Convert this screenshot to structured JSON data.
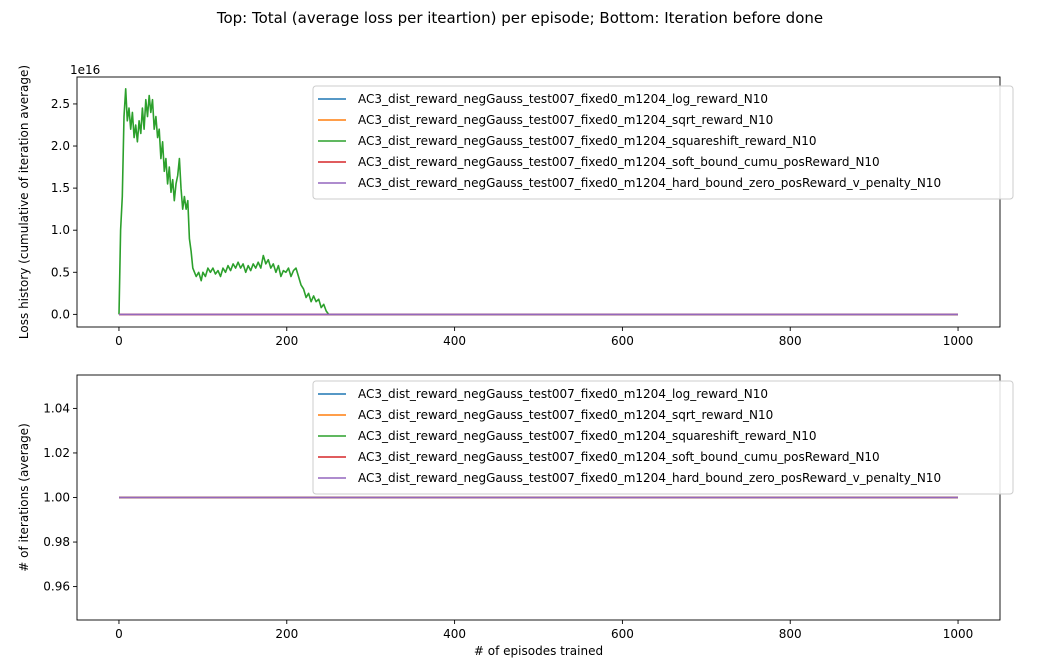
{
  "figure": {
    "suptitle": "Top: Total (average loss per iteartion) per episode; Bottom: Iteration before done"
  },
  "chart_data": [
    {
      "type": "line",
      "title": "",
      "xlabel": "",
      "ylabel": "Loss history (cumulative of iteration average)",
      "offset_text": "1e16",
      "xlim": [
        -50,
        1050
      ],
      "ylim": [
        -0.15,
        2.82
      ],
      "xticks": [
        0,
        200,
        400,
        600,
        800,
        1000
      ],
      "xtick_labels": [
        "0",
        "200",
        "400",
        "600",
        "800",
        "1000"
      ],
      "yticks": [
        0.0,
        0.5,
        1.0,
        1.5,
        2.0,
        2.5
      ],
      "ytick_labels": [
        "0.0",
        "0.5",
        "1.0",
        "1.5",
        "2.0",
        "2.5"
      ],
      "grid": false,
      "legend_position": "upper-right",
      "series": [
        {
          "name": "AC3_dist_reward_negGauss_test007_fixed0_m1204_log_reward_N10",
          "color": "#1f77b4",
          "points": [
            [
              0,
              0
            ],
            [
              1000,
              0
            ]
          ]
        },
        {
          "name": "AC3_dist_reward_negGauss_test007_fixed0_m1204_sqrt_reward_N10",
          "color": "#ff7f0e",
          "points": [
            [
              0,
              0
            ],
            [
              1000,
              0
            ]
          ]
        },
        {
          "name": "AC3_dist_reward_negGauss_test007_fixed0_m1204_squareshift_reward_N10",
          "color": "#2ca02c",
          "points": [
            [
              0,
              0
            ],
            [
              2,
              1.0
            ],
            [
              4,
              1.4
            ],
            [
              6,
              2.35
            ],
            [
              8,
              2.68
            ],
            [
              10,
              2.3
            ],
            [
              12,
              2.45
            ],
            [
              14,
              2.2
            ],
            [
              16,
              2.4
            ],
            [
              18,
              2.1
            ],
            [
              20,
              2.25
            ],
            [
              22,
              2.05
            ],
            [
              24,
              2.3
            ],
            [
              26,
              2.15
            ],
            [
              28,
              2.45
            ],
            [
              30,
              2.2
            ],
            [
              32,
              2.55
            ],
            [
              34,
              2.35
            ],
            [
              36,
              2.6
            ],
            [
              38,
              2.4
            ],
            [
              40,
              2.55
            ],
            [
              42,
              2.2
            ],
            [
              44,
              2.35
            ],
            [
              46,
              2.1
            ],
            [
              48,
              2.2
            ],
            [
              50,
              1.85
            ],
            [
              52,
              2.05
            ],
            [
              54,
              1.7
            ],
            [
              56,
              1.85
            ],
            [
              58,
              1.55
            ],
            [
              60,
              1.75
            ],
            [
              62,
              1.45
            ],
            [
              64,
              1.6
            ],
            [
              66,
              1.35
            ],
            [
              68,
              1.55
            ],
            [
              70,
              1.65
            ],
            [
              72,
              1.85
            ],
            [
              74,
              1.5
            ],
            [
              76,
              1.25
            ],
            [
              78,
              1.4
            ],
            [
              80,
              1.25
            ],
            [
              82,
              1.35
            ],
            [
              84,
              0.9
            ],
            [
              86,
              0.75
            ],
            [
              88,
              0.55
            ],
            [
              90,
              0.5
            ],
            [
              92,
              0.45
            ],
            [
              95,
              0.5
            ],
            [
              98,
              0.4
            ],
            [
              100,
              0.5
            ],
            [
              103,
              0.45
            ],
            [
              106,
              0.55
            ],
            [
              109,
              0.5
            ],
            [
              112,
              0.55
            ],
            [
              115,
              0.48
            ],
            [
              118,
              0.52
            ],
            [
              121,
              0.45
            ],
            [
              124,
              0.55
            ],
            [
              127,
              0.5
            ],
            [
              130,
              0.58
            ],
            [
              133,
              0.52
            ],
            [
              136,
              0.6
            ],
            [
              139,
              0.55
            ],
            [
              142,
              0.62
            ],
            [
              145,
              0.55
            ],
            [
              148,
              0.6
            ],
            [
              151,
              0.5
            ],
            [
              154,
              0.58
            ],
            [
              157,
              0.52
            ],
            [
              160,
              0.6
            ],
            [
              163,
              0.55
            ],
            [
              166,
              0.62
            ],
            [
              169,
              0.55
            ],
            [
              172,
              0.7
            ],
            [
              175,
              0.6
            ],
            [
              178,
              0.65
            ],
            [
              181,
              0.55
            ],
            [
              184,
              0.6
            ],
            [
              187,
              0.5
            ],
            [
              190,
              0.58
            ],
            [
              193,
              0.45
            ],
            [
              196,
              0.52
            ],
            [
              199,
              0.5
            ],
            [
              202,
              0.55
            ],
            [
              205,
              0.45
            ],
            [
              208,
              0.52
            ],
            [
              211,
              0.55
            ],
            [
              214,
              0.45
            ],
            [
              217,
              0.35
            ],
            [
              220,
              0.3
            ],
            [
              223,
              0.2
            ],
            [
              226,
              0.25
            ],
            [
              229,
              0.15
            ],
            [
              232,
              0.22
            ],
            [
              235,
              0.15
            ],
            [
              238,
              0.18
            ],
            [
              241,
              0.08
            ],
            [
              244,
              0.12
            ],
            [
              247,
              0.04
            ],
            [
              250,
              0.0
            ],
            [
              1000,
              0
            ]
          ]
        },
        {
          "name": "AC3_dist_reward_negGauss_test007_fixed0_m1204_soft_bound_cumu_posReward_N10",
          "color": "#d62728",
          "points": [
            [
              0,
              0
            ],
            [
              1000,
              0
            ]
          ]
        },
        {
          "name": "AC3_dist_reward_negGauss_test007_fixed0_m1204_hard_bound_zero_posReward_v_penalty_N10",
          "color": "#9467bd",
          "points": [
            [
              0,
              0
            ],
            [
              1000,
              0
            ]
          ]
        }
      ]
    },
    {
      "type": "line",
      "title": "",
      "xlabel": "# of episodes trained",
      "ylabel": "# of iterations (average)",
      "xlim": [
        -50,
        1050
      ],
      "ylim": [
        0.945,
        1.055
      ],
      "xticks": [
        0,
        200,
        400,
        600,
        800,
        1000
      ],
      "xtick_labels": [
        "0",
        "200",
        "400",
        "600",
        "800",
        "1000"
      ],
      "yticks": [
        0.96,
        0.98,
        1.0,
        1.02,
        1.04
      ],
      "ytick_labels": [
        "0.96",
        "0.98",
        "1.00",
        "1.02",
        "1.04"
      ],
      "grid": false,
      "legend_position": "upper-right",
      "series": [
        {
          "name": "AC3_dist_reward_negGauss_test007_fixed0_m1204_log_reward_N10",
          "color": "#1f77b4",
          "points": [
            [
              0,
              1.0
            ],
            [
              1000,
              1.0
            ]
          ]
        },
        {
          "name": "AC3_dist_reward_negGauss_test007_fixed0_m1204_sqrt_reward_N10",
          "color": "#ff7f0e",
          "points": [
            [
              0,
              1.0
            ],
            [
              1000,
              1.0
            ]
          ]
        },
        {
          "name": "AC3_dist_reward_negGauss_test007_fixed0_m1204_squareshift_reward_N10",
          "color": "#2ca02c",
          "points": [
            [
              0,
              1.0
            ],
            [
              1000,
              1.0
            ]
          ]
        },
        {
          "name": "AC3_dist_reward_negGauss_test007_fixed0_m1204_soft_bound_cumu_posReward_N10",
          "color": "#d62728",
          "points": [
            [
              0,
              1.0
            ],
            [
              1000,
              1.0
            ]
          ]
        },
        {
          "name": "AC3_dist_reward_negGauss_test007_fixed0_m1204_hard_bound_zero_posReward_v_penalty_N10",
          "color": "#9467bd",
          "points": [
            [
              0,
              1.0
            ],
            [
              1000,
              1.0
            ]
          ]
        }
      ]
    }
  ]
}
